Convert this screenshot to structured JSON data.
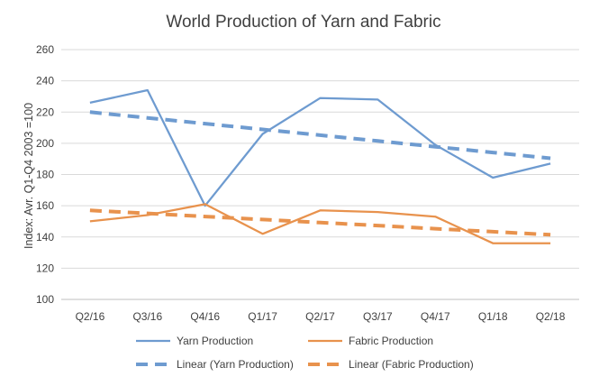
{
  "chart_data": {
    "type": "line",
    "title": "World Production of Yarn and Fabric",
    "xlabel": "",
    "ylabel": "Index: Avr. Q1-Q4 2003 =100",
    "categories": [
      "Q2/16",
      "Q3/16",
      "Q4/16",
      "Q1/17",
      "Q2/17",
      "Q3/17",
      "Q4/17",
      "Q1/18",
      "Q2/18"
    ],
    "ylim": [
      100,
      260
    ],
    "yticks": [
      100,
      120,
      140,
      160,
      180,
      200,
      220,
      240,
      260
    ],
    "grid": true,
    "legend_position": "bottom",
    "series": [
      {
        "name": "Yarn Production",
        "color": "#6E9BD0",
        "style": "solid",
        "values": [
          226,
          234,
          160,
          206,
          229,
          228,
          199,
          178,
          187
        ]
      },
      {
        "name": "Fabric Production",
        "color": "#E8924D",
        "style": "solid",
        "values": [
          150,
          154,
          161,
          142,
          157,
          156,
          153,
          136,
          136
        ]
      },
      {
        "name": "Linear (Yarn Production)",
        "color": "#6E9BD0",
        "style": "dashed",
        "values": [
          220,
          216.3,
          212.6,
          208.9,
          205.2,
          201.5,
          197.8,
          194.1,
          190.4
        ]
      },
      {
        "name": "Linear (Fabric Production)",
        "color": "#E8924D",
        "style": "dashed",
        "values": [
          157,
          155.1,
          153.1,
          151.2,
          149.2,
          147.3,
          145.3,
          143.4,
          141.4
        ]
      }
    ]
  }
}
